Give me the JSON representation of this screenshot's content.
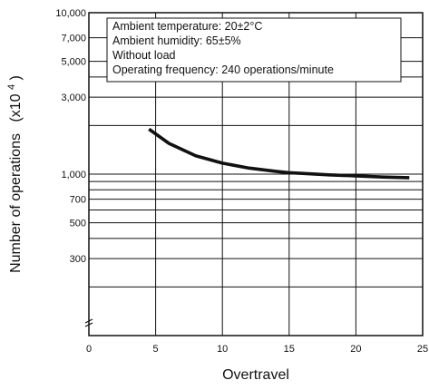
{
  "chart_data": {
    "type": "line",
    "xlabel": "Overtravel",
    "ylabel_main": "Number of operations",
    "ylabel_unit_prefix": "(x10",
    "ylabel_unit_exp": "4",
    "ylabel_unit_suffix": ")",
    "xlim": [
      0,
      25
    ],
    "ylim": [
      100,
      10000
    ],
    "y_scale": "log",
    "grid": true,
    "x_ticks": [
      {
        "value": 0,
        "label": "0"
      },
      {
        "value": 5,
        "label": "5"
      },
      {
        "value": 10,
        "label": "10"
      },
      {
        "value": 15,
        "label": "15"
      },
      {
        "value": 20,
        "label": "20"
      },
      {
        "value": 25,
        "label": "25"
      }
    ],
    "y_tick_labels": [
      {
        "value": 10000,
        "label": "10,000"
      },
      {
        "value": 7000,
        "label": "7,000"
      },
      {
        "value": 5000,
        "label": "5,000"
      },
      {
        "value": 3000,
        "label": "3,000"
      },
      {
        "value": 1000,
        "label": "1,000"
      },
      {
        "value": 700,
        "label": "700"
      },
      {
        "value": 500,
        "label": "500"
      },
      {
        "value": 300,
        "label": "300"
      }
    ],
    "y_grid_values": [
      10000,
      7000,
      5000,
      4000,
      3000,
      2000,
      1000,
      900,
      800,
      700,
      600,
      500,
      400,
      300,
      200
    ],
    "annotations": [
      "Ambient temperature: 20±2°C",
      "Ambient humidity: 65±5%",
      "Without load",
      "Operating frequency: 240 operations/minute"
    ],
    "series": [
      {
        "color": "#111111",
        "x": [
          4.5,
          6,
          8,
          10,
          12,
          14,
          15,
          16,
          18,
          20,
          22,
          24
        ],
        "values": [
          1900,
          1550,
          1300,
          1170,
          1090,
          1040,
          1020,
          1010,
          990,
          975,
          960,
          950
        ]
      }
    ]
  }
}
